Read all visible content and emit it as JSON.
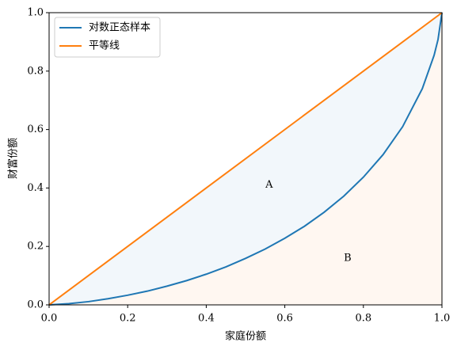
{
  "chart_data": {
    "type": "line",
    "xlabel": "家庭份额",
    "ylabel": "财富份额",
    "xlim": [
      0,
      1
    ],
    "ylim": [
      0,
      1
    ],
    "xticks": [
      {
        "value": 0,
        "label": "0.0"
      },
      0.2,
      0.4,
      0.6,
      0.8,
      {
        "value": 1,
        "label": "1.0"
      }
    ],
    "yticks": [
      {
        "value": 0,
        "label": "0.0"
      },
      0.2,
      0.4,
      0.6,
      0.8,
      {
        "value": 1,
        "label": "1.0"
      }
    ],
    "legend": "upper left",
    "series": [
      {
        "name": "对数正态样本",
        "color": "#1f77b4",
        "x": [
          0,
          0.05,
          0.1,
          0.15,
          0.2,
          0.25,
          0.3,
          0.35,
          0.4,
          0.45,
          0.5,
          0.55,
          0.6,
          0.65,
          0.7,
          0.75,
          0.8,
          0.85,
          0.9,
          0.95,
          0.98,
          0.99,
          1
        ],
        "values": [
          0,
          0.004,
          0.011,
          0.021,
          0.033,
          0.047,
          0.064,
          0.083,
          0.105,
          0.13,
          0.159,
          0.191,
          0.228,
          0.269,
          0.317,
          0.372,
          0.437,
          0.514,
          0.61,
          0.74,
          0.854,
          0.908,
          1
        ]
      },
      {
        "name": "平等线",
        "color": "#ff7f0e",
        "x": [
          0,
          1
        ],
        "values": [
          0,
          1
        ]
      }
    ],
    "annotations": [
      {
        "text": "A",
        "x": 0.56,
        "y": 0.41
      },
      {
        "text": "B",
        "x": 0.76,
        "y": 0.16
      }
    ]
  }
}
